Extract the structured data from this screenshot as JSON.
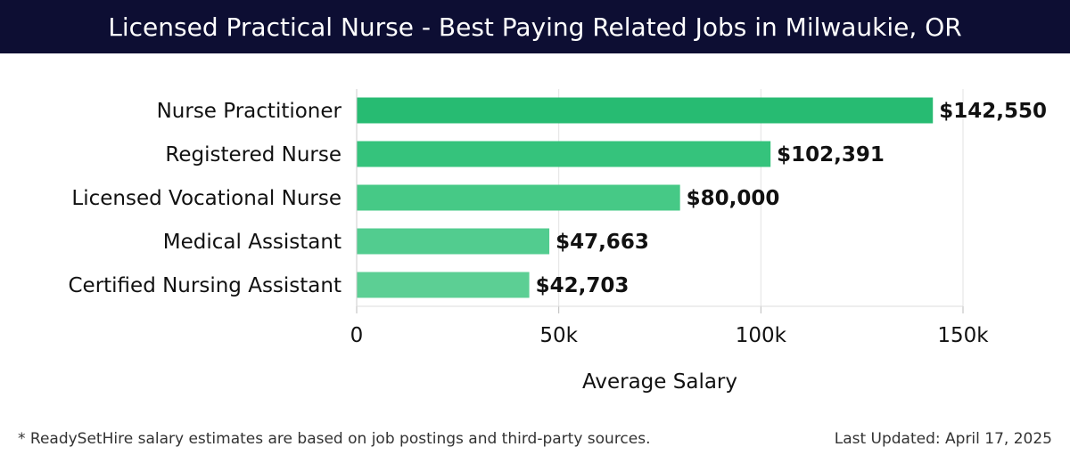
{
  "header": {
    "title": "Licensed Practical Nurse - Best Paying Related Jobs in Milwaukie, OR"
  },
  "chart_data": {
    "type": "bar",
    "orientation": "horizontal",
    "title": "Licensed Practical Nurse - Best Paying Related Jobs in Milwaukie, OR",
    "categories": [
      "Nurse Practitioner",
      "Registered Nurse",
      "Licensed Vocational Nurse",
      "Medical Assistant",
      "Certified Nursing Assistant"
    ],
    "values": [
      142550,
      102391,
      80000,
      47663,
      42703
    ],
    "value_labels": [
      "$142,550",
      "$102,391",
      "$80,000",
      "$47,663",
      "$42,703"
    ],
    "bar_colors": [
      "#27bb72",
      "#35c37c",
      "#46c986",
      "#52cc8f",
      "#5ccf94"
    ],
    "xlabel": "Average Salary",
    "ylabel": "",
    "xlim": [
      0,
      150000
    ],
    "xticks": [
      0,
      50000,
      100000,
      150000
    ],
    "xtick_labels": [
      "0",
      "50k",
      "100k",
      "150k"
    ],
    "grid": true
  },
  "footer": {
    "note": "* ReadySetHire salary estimates are based on job postings and third-party sources.",
    "updated": "Last Updated: April 17, 2025"
  }
}
